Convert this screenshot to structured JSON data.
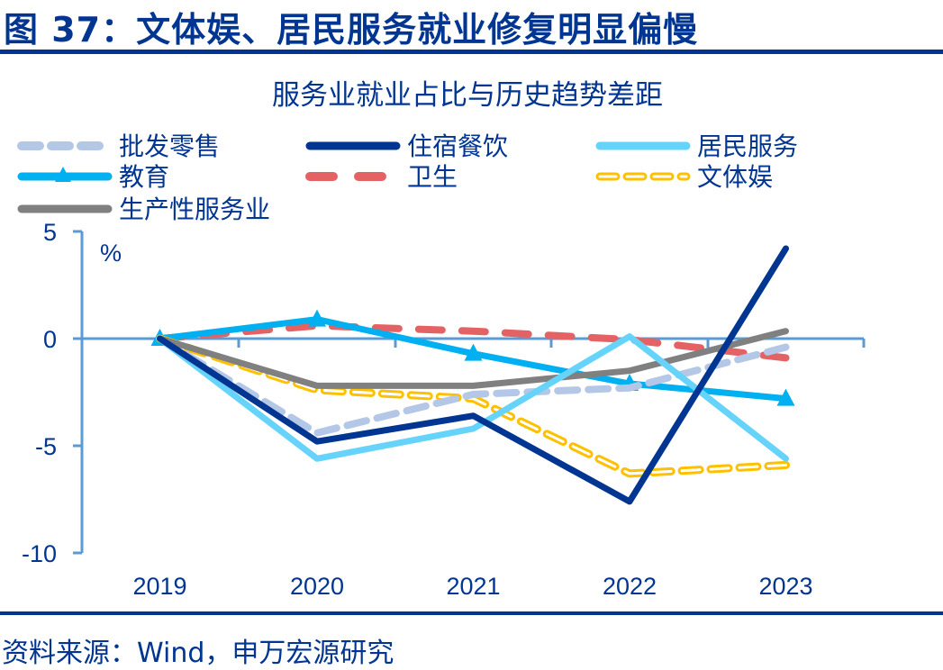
{
  "figure_title": "图 37：文体娱、居民服务就业修复明显偏慢",
  "source": "资料来源：Wind，申万宏源研究",
  "chart_data": {
    "type": "line",
    "title": "服务业就业占比与历史趋势差距",
    "xlabel": "",
    "ylabel": "%",
    "categories": [
      "2019",
      "2020",
      "2021",
      "2022",
      "2023"
    ],
    "ylim": [
      -10,
      5
    ],
    "yticks": [
      5,
      0,
      -5,
      -10
    ],
    "ytick_labels": [
      "5",
      "0",
      "-5",
      "-10"
    ],
    "grid": false,
    "legend_position": "top",
    "series": [
      {
        "name": "批发零售",
        "color": "#B4C7E7",
        "style": "dashed",
        "values": [
          0,
          -4.4,
          -2.6,
          -2.3,
          -0.4
        ]
      },
      {
        "name": "住宿餐饮",
        "color": "#003591",
        "style": "solid",
        "values": [
          0,
          -4.8,
          -3.6,
          -7.6,
          4.2
        ]
      },
      {
        "name": "居民服务",
        "color": "#66D3FA",
        "style": "solid",
        "values": [
          0,
          -5.6,
          -4.2,
          0.1,
          -5.6
        ]
      },
      {
        "name": "教育",
        "color": "#00B0F0",
        "style": "solid-triangle",
        "values": [
          0,
          0.9,
          -0.7,
          -2.1,
          -2.8
        ]
      },
      {
        "name": "卫生",
        "color": "#E46264",
        "style": "long-dash",
        "values": [
          0,
          0.6,
          0.35,
          -0.05,
          -0.9
        ]
      },
      {
        "name": "文体娱",
        "color": "#FFC000",
        "style": "hollow-dash",
        "values": [
          0,
          -2.4,
          -2.8,
          -6.3,
          -5.9
        ]
      },
      {
        "name": "生产性服务业",
        "color": "#808080",
        "style": "solid",
        "values": [
          0,
          -2.2,
          -2.2,
          -1.5,
          0.35
        ]
      }
    ],
    "axis_color": "#5B9BD5"
  }
}
